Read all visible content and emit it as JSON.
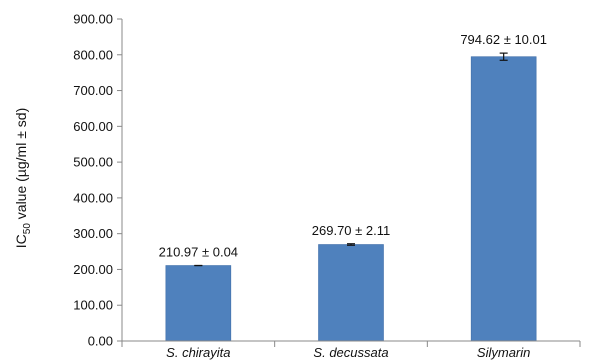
{
  "chart_data": {
    "type": "bar",
    "title": "",
    "xlabel": "",
    "ylabel": {
      "prefix": "IC",
      "subscript": "50",
      "suffix": " value (µg/ml ± sd)"
    },
    "ylim": [
      0,
      900
    ],
    "yticks": [
      0,
      100,
      200,
      300,
      400,
      500,
      600,
      700,
      800,
      900
    ],
    "ytick_labels": [
      "0.00",
      "100.00",
      "200.00",
      "300.00",
      "400.00",
      "500.00",
      "600.00",
      "700.00",
      "800.00",
      "900.00"
    ],
    "categories": [
      "S. chirayita",
      "S. decussata",
      "Silymarin"
    ],
    "values": [
      210.97,
      269.7,
      794.62
    ],
    "errors": [
      0.04,
      2.11,
      10.01
    ],
    "data_labels": [
      "210.97 ± 0.04",
      "269.70 ± 2.11",
      "794.62 ± 10.01"
    ],
    "grid": false,
    "legend": "none",
    "colors": {
      "bar": "#4F81BD",
      "bar_edge": "#3F6EA8",
      "axis": "#888888",
      "error_bar": "#111111"
    }
  }
}
